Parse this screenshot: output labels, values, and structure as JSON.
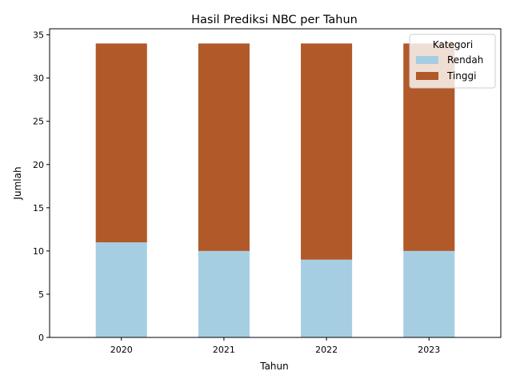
{
  "chart_data": {
    "type": "bar",
    "stacked": true,
    "title": "Hasil Prediksi NBC per Tahun",
    "xlabel": "Tahun",
    "ylabel": "Jumlah",
    "categories": [
      "2020",
      "2021",
      "2022",
      "2023"
    ],
    "series": [
      {
        "name": "Rendah",
        "values": [
          11,
          10,
          9,
          10
        ],
        "color": "#a6cee3"
      },
      {
        "name": "Tinggi",
        "values": [
          23,
          24,
          25,
          24
        ],
        "color": "#b15928"
      }
    ],
    "ylim": [
      0,
      35.7
    ],
    "yticks": [
      0,
      5,
      10,
      15,
      20,
      25,
      30,
      35
    ],
    "grid": false,
    "legend": {
      "title": "Kategori",
      "placement": "top-right"
    }
  }
}
